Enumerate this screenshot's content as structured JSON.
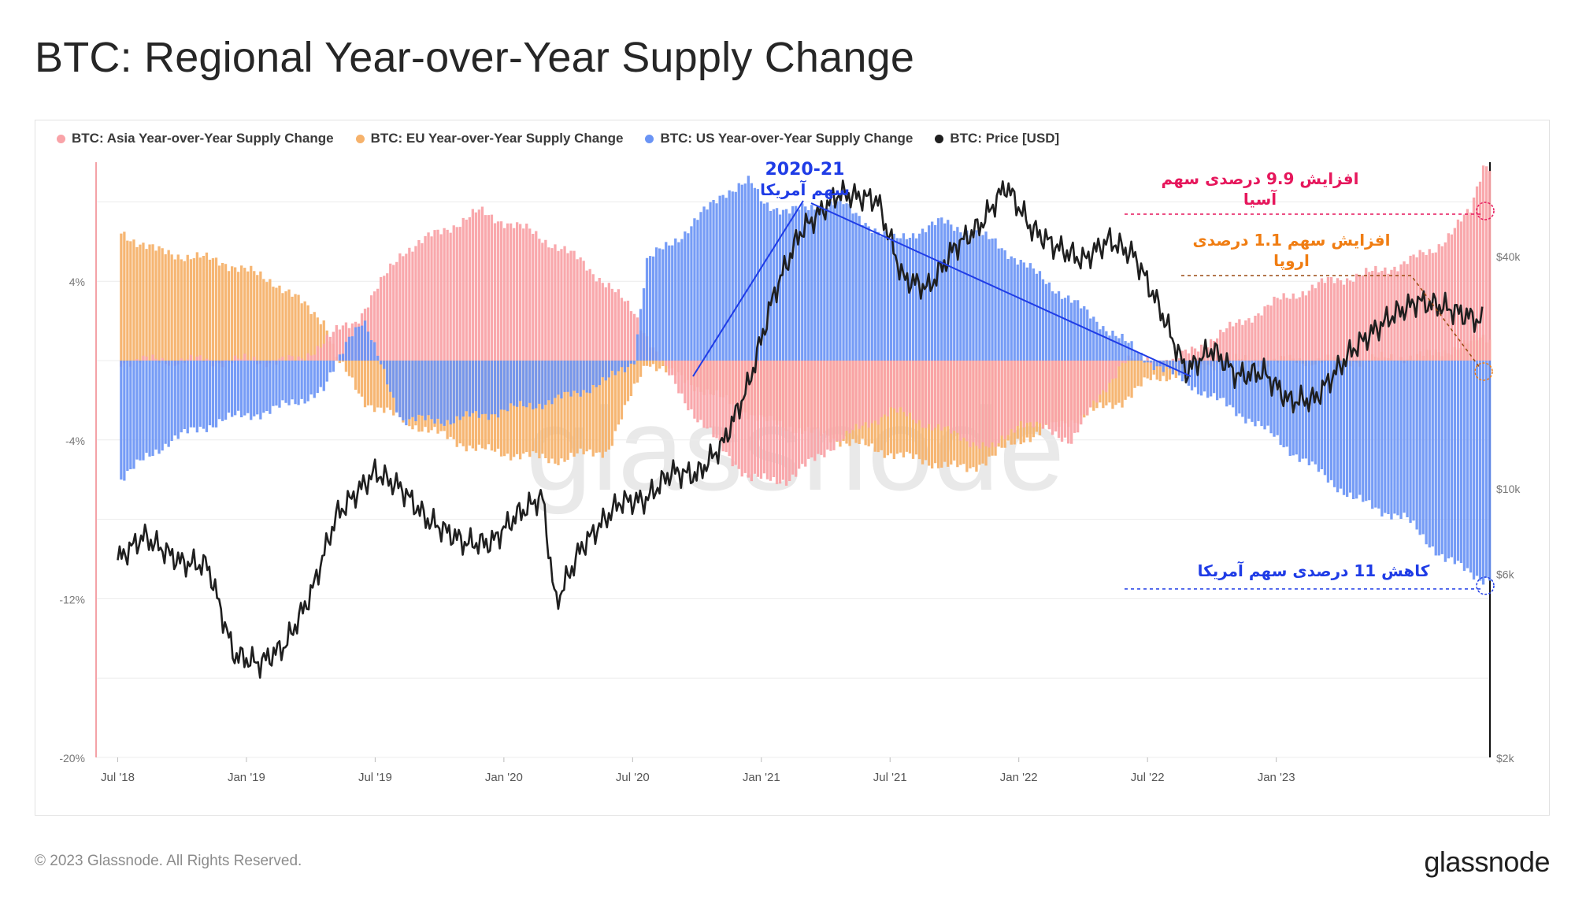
{
  "title": "BTC: Regional Year-over-Year Supply Change",
  "footer": {
    "copyright": "© 2023 Glassnode. All Rights Reserved.",
    "logo": "glassnode"
  },
  "watermark": "glassnode",
  "colors": {
    "asia": "#f9a3a8",
    "eu": "#f6b26b",
    "us": "#6a94f5",
    "price": "#1f1f1f",
    "annotation_blue": "#1f3ce6",
    "annotation_pink": "#e6175c",
    "annotation_orange": "#f07d12"
  },
  "chart_data": {
    "type": "area",
    "title": "BTC: Regional Year-over-Year Supply Change",
    "x_ticks": [
      "Jul '18",
      "Jan '19",
      "Jul '19",
      "Jan '20",
      "Jul '20",
      "Jan '21",
      "Jul '21",
      "Jan '22",
      "Jul '22",
      "Jan '23"
    ],
    "y_left": {
      "ticks": [
        "4%",
        "-4%",
        "-12%",
        "-20%"
      ],
      "values": [
        4,
        -4,
        -12,
        -20
      ],
      "range": [
        -20,
        10
      ]
    },
    "y_right": {
      "ticks": [
        "$40k",
        "$10k",
        "$6k",
        "$2k"
      ],
      "values": [
        40000,
        10000,
        6000,
        2000
      ],
      "scale": "log"
    },
    "legend_position": "top-left",
    "series": [
      {
        "name": "BTC: Asia Year-over-Year Supply Change",
        "key": "asia",
        "x": [
          2018.5,
          2018.9,
          2019.2,
          2019.35,
          2019.42,
          2019.6,
          2019.9,
          2020.1,
          2020.3,
          2020.5,
          2020.6,
          2020.75,
          2020.95,
          2021.1,
          2021.3,
          2021.5,
          2021.7,
          2021.9,
          2022.0,
          2022.2,
          2022.4,
          2022.6,
          2022.8,
          2023.0,
          2023.2,
          2023.4,
          2023.6,
          2023.75,
          2023.8
        ],
        "values": [
          0,
          0,
          0,
          1.5,
          2.0,
          5.5,
          7.5,
          6.5,
          5.0,
          2.5,
          0,
          -3.0,
          -6.0,
          -6.0,
          -4.0,
          -2.5,
          -3.5,
          -4.5,
          -3.0,
          -4.0,
          0,
          0,
          1.5,
          3.0,
          4.0,
          4.5,
          5.5,
          7.5,
          9.9
        ]
      },
      {
        "name": "BTC: EU Year-over-Year Supply Change",
        "key": "eu",
        "x": [
          2018.5,
          2018.65,
          2018.9,
          2019.1,
          2019.3,
          2019.35,
          2019.45,
          2019.6,
          2019.9,
          2020.2,
          2020.4,
          2020.5,
          2020.55,
          2020.7,
          2021.0,
          2021.3,
          2021.6,
          2021.8,
          2022.0,
          2022.2,
          2022.4,
          2022.5,
          2022.8,
          2023.0,
          2023.3,
          2023.6,
          2023.8
        ],
        "values": [
          6.5,
          5.5,
          5.0,
          4.0,
          2.0,
          0,
          -2.0,
          -3.0,
          -4.5,
          -5.0,
          -4.5,
          -1.5,
          0,
          -1.0,
          -3.0,
          -4.0,
          -5.0,
          -5.5,
          -4.0,
          -3.0,
          -2.0,
          -1.0,
          0,
          0,
          0,
          0.3,
          1.1
        ]
      },
      {
        "name": "BTC: US Year-over-Year Supply Change",
        "key": "us",
        "x": [
          2018.5,
          2018.7,
          2018.9,
          2019.1,
          2019.3,
          2019.4,
          2019.45,
          2019.6,
          2019.8,
          2020.0,
          2020.2,
          2020.4,
          2020.5,
          2020.55,
          2020.7,
          2020.85,
          2020.95,
          2021.0,
          2021.1,
          2021.3,
          2021.5,
          2021.7,
          2021.9,
          2022.0,
          2022.1,
          2022.2,
          2022.35,
          2022.45,
          2022.5,
          2022.7,
          2022.9,
          2023.1,
          2023.3,
          2023.5,
          2023.65,
          2023.8
        ],
        "values": [
          -6.0,
          -4.0,
          -3.0,
          -2.5,
          -1.5,
          1.5,
          2.0,
          -3.0,
          -3.0,
          -2.5,
          -2.0,
          -1.0,
          0,
          5.0,
          6.5,
          8.5,
          9.0,
          8.0,
          7.5,
          8.0,
          6.0,
          7.0,
          6.0,
          5.0,
          4.0,
          3.0,
          1.5,
          0.5,
          0,
          -1.5,
          -3.0,
          -5.0,
          -7.0,
          -8.0,
          -10.0,
          -11.0
        ]
      },
      {
        "name": "BTC: Price [USD]",
        "key": "price",
        "x": [
          2018.5,
          2018.6,
          2018.75,
          2018.85,
          2018.95,
          2019.05,
          2019.15,
          2019.25,
          2019.35,
          2019.5,
          2019.6,
          2019.7,
          2019.85,
          2019.95,
          2020.05,
          2020.15,
          2020.2,
          2020.3,
          2020.45,
          2020.55,
          2020.65,
          2020.75,
          2020.85,
          2020.95,
          2021.05,
          2021.15,
          2021.3,
          2021.45,
          2021.55,
          2021.65,
          2021.75,
          2021.85,
          2021.95,
          2022.05,
          2022.15,
          2022.25,
          2022.35,
          2022.45,
          2022.55,
          2022.65,
          2022.75,
          2022.85,
          2022.95,
          2023.05,
          2023.15,
          2023.3,
          2023.45,
          2023.55,
          2023.65,
          2023.8
        ],
        "values": [
          6500,
          7500,
          6400,
          6300,
          3700,
          3500,
          3900,
          5300,
          8500,
          11000,
          10000,
          8300,
          7200,
          7200,
          8500,
          9500,
          5000,
          7000,
          9200,
          9300,
          11000,
          10800,
          13000,
          18500,
          32000,
          46000,
          58000,
          56000,
          35000,
          33000,
          42000,
          48000,
          61000,
          47000,
          42000,
          39000,
          44000,
          40000,
          29000,
          20000,
          23000,
          19500,
          20000,
          16800,
          17000,
          23000,
          28000,
          30500,
          29500,
          27000
        ]
      }
    ],
    "annotations": {
      "us_peak_year": "2020-21",
      "us_peak_label": "سهم آمریکا",
      "asia_line1": "افزایش  9.9 درصدی سهم",
      "asia_line2": "آسیا",
      "eu_line1": "افزایش سهم  1.1 درصدی",
      "eu_line2": "اروپا",
      "us_drop": "کاهش 11 درصدی سهم آمریکا"
    }
  }
}
